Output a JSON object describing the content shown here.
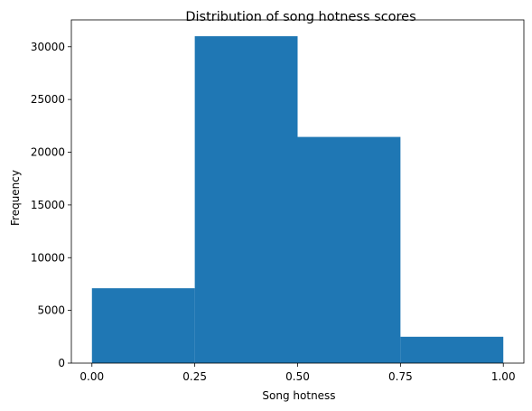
{
  "chart_data": {
    "type": "bar",
    "title": "Distribution of song hotness scores",
    "xlabel": "Song hotness",
    "ylabel": "Frequency",
    "bins": [
      {
        "x0": 0.0,
        "x1": 0.25,
        "value": 7100
      },
      {
        "x0": 0.25,
        "x1": 0.5,
        "value": 31000
      },
      {
        "x0": 0.5,
        "x1": 0.75,
        "value": 21450
      },
      {
        "x0": 0.75,
        "x1": 1.0,
        "value": 2500
      }
    ],
    "xlim": [
      -0.05,
      1.05
    ],
    "ylim": [
      0,
      32550
    ],
    "xticks": [
      0.0,
      0.25,
      0.5,
      0.75,
      1.0
    ],
    "xtick_labels": [
      "0.00",
      "0.25",
      "0.50",
      "0.75",
      "1.00"
    ],
    "yticks": [
      0,
      5000,
      10000,
      15000,
      20000,
      25000,
      30000
    ],
    "ytick_labels": [
      "0",
      "5000",
      "10000",
      "15000",
      "20000",
      "25000",
      "30000"
    ],
    "bar_color": "#1f77b4",
    "grid": false
  }
}
